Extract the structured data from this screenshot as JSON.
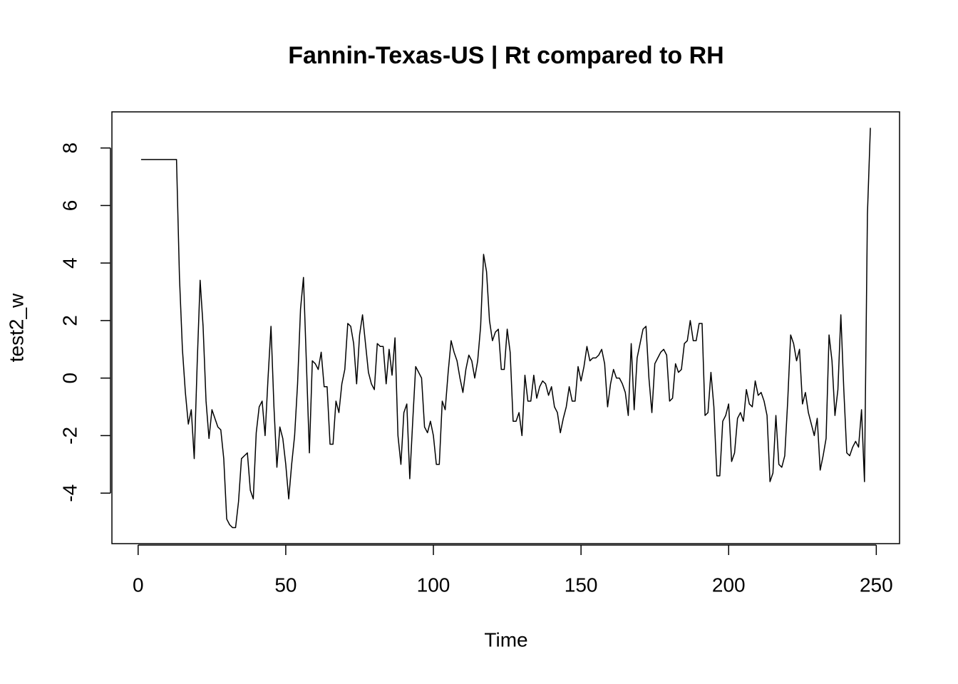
{
  "chart_data": {
    "type": "line",
    "title": "Fannin-Texas-US | Rt compared to RH",
    "x_label": "Time",
    "y_label": "test2_w",
    "color": "#000000",
    "x": [
      1,
      2,
      3,
      4,
      5,
      6,
      7,
      8,
      9,
      10,
      11,
      12,
      13,
      14,
      15,
      16,
      17,
      18,
      19,
      20,
      21,
      22,
      23,
      24,
      25,
      26,
      27,
      28,
      29,
      30,
      31,
      32,
      33,
      34,
      35,
      36,
      37,
      38,
      39,
      40,
      41,
      42,
      43,
      44,
      45,
      46,
      47,
      48,
      49,
      50,
      51,
      52,
      53,
      54,
      55,
      56,
      57,
      58,
      59,
      60,
      61,
      62,
      63,
      64,
      65,
      66,
      67,
      68,
      69,
      70,
      71,
      72,
      73,
      74,
      75,
      76,
      77,
      78,
      79,
      80,
      81,
      82,
      83,
      84,
      85,
      86,
      87,
      88,
      89,
      90,
      91,
      92,
      93,
      94,
      95,
      96,
      97,
      98,
      99,
      100,
      101,
      102,
      103,
      104,
      105,
      106,
      107,
      108,
      109,
      110,
      111,
      112,
      113,
      114,
      115,
      116,
      117,
      118,
      119,
      120,
      121,
      122,
      123,
      124,
      125,
      126,
      127,
      128,
      129,
      130,
      131,
      132,
      133,
      134,
      135,
      136,
      137,
      138,
      139,
      140,
      141,
      142,
      143,
      144,
      145,
      146,
      147,
      148,
      149,
      150,
      151,
      152,
      153,
      154,
      155,
      156,
      157,
      158,
      159,
      160,
      161,
      162,
      163,
      164,
      165,
      166,
      167,
      168,
      169,
      170,
      171,
      172,
      173,
      174,
      175,
      176,
      177,
      178,
      179,
      180,
      181,
      182,
      183,
      184,
      185,
      186,
      187,
      188,
      189,
      190,
      191,
      192,
      193,
      194,
      195,
      196,
      197,
      198,
      199,
      200,
      201,
      202,
      203,
      204,
      205,
      206,
      207,
      208,
      209,
      210,
      211,
      212,
      213,
      214,
      215,
      216,
      217,
      218,
      219,
      220,
      221,
      222,
      223,
      224,
      225,
      226,
      227,
      228,
      229,
      230,
      231,
      232,
      233,
      234,
      235,
      236,
      237,
      238,
      239,
      240,
      241,
      242,
      243,
      244,
      245,
      246,
      247,
      248
    ],
    "values": [
      7.6,
      7.6,
      7.6,
      7.6,
      7.6,
      7.6,
      7.6,
      7.6,
      7.6,
      7.6,
      7.6,
      7.6,
      7.6,
      3.5,
      1.0,
      -0.5,
      -1.6,
      -1.1,
      -2.8,
      0.5,
      3.4,
      1.8,
      -0.8,
      -2.1,
      -1.1,
      -1.4,
      -1.7,
      -1.8,
      -2.8,
      -4.9,
      -5.1,
      -5.2,
      -5.2,
      -4.3,
      -2.8,
      -2.7,
      -2.6,
      -3.9,
      -4.2,
      -1.9,
      -1.0,
      -0.8,
      -2.0,
      0.0,
      1.8,
      -1.0,
      -3.1,
      -1.7,
      -2.1,
      -3.0,
      -4.2,
      -3.0,
      -2.0,
      -0.2,
      2.4,
      3.5,
      0.5,
      -2.6,
      0.6,
      0.5,
      0.3,
      0.9,
      -0.3,
      -0.3,
      -2.3,
      -2.3,
      -0.8,
      -1.2,
      -0.2,
      0.3,
      1.9,
      1.8,
      1.2,
      -0.2,
      1.5,
      2.2,
      1.2,
      0.2,
      -0.2,
      -0.4,
      1.2,
      1.1,
      1.1,
      -0.2,
      1.0,
      0.1,
      1.4,
      -2.0,
      -3.0,
      -1.2,
      -0.9,
      -3.5,
      -1.5,
      0.4,
      0.2,
      0.0,
      -1.7,
      -1.9,
      -1.5,
      -2.0,
      -3.0,
      -3.0,
      -0.8,
      -1.1,
      0.2,
      1.3,
      0.9,
      0.6,
      0.0,
      -0.5,
      0.3,
      0.8,
      0.6,
      0.0,
      0.6,
      1.8,
      4.3,
      3.7,
      2.0,
      1.3,
      1.6,
      1.7,
      0.3,
      0.3,
      1.7,
      0.9,
      -1.5,
      -1.5,
      -1.2,
      -2.0,
      0.1,
      -0.8,
      -0.8,
      0.1,
      -0.7,
      -0.3,
      -0.1,
      -0.2,
      -0.6,
      -0.3,
      -1.0,
      -1.2,
      -1.9,
      -1.4,
      -1.0,
      -0.3,
      -0.8,
      -0.8,
      0.4,
      -0.1,
      0.4,
      1.1,
      0.6,
      0.7,
      0.7,
      0.8,
      1.0,
      0.5,
      -1.0,
      -0.2,
      0.3,
      0.0,
      0.0,
      -0.2,
      -0.5,
      -1.3,
      1.2,
      -1.1,
      0.7,
      1.2,
      1.7,
      1.8,
      0.0,
      -1.2,
      0.5,
      0.7,
      0.9,
      1.0,
      0.8,
      -0.8,
      -0.7,
      0.5,
      0.2,
      0.3,
      1.2,
      1.3,
      2.0,
      1.3,
      1.3,
      1.9,
      1.9,
      -1.3,
      -1.2,
      0.2,
      -1.0,
      -3.4,
      -3.4,
      -1.5,
      -1.3,
      -0.9,
      -2.9,
      -2.6,
      -1.4,
      -1.2,
      -1.5,
      -0.4,
      -0.9,
      -1.0,
      -0.1,
      -0.6,
      -0.5,
      -0.8,
      -1.3,
      -3.6,
      -3.3,
      -1.3,
      -3.0,
      -3.1,
      -2.7,
      -0.8,
      1.5,
      1.2,
      0.6,
      1.0,
      -0.9,
      -0.5,
      -1.2,
      -1.6,
      -2.0,
      -1.4,
      -3.2,
      -2.7,
      -2.1,
      1.5,
      0.6,
      -1.3,
      -0.4,
      2.2,
      -0.4,
      -2.6,
      -2.7,
      -2.4,
      -2.2,
      -2.4,
      -1.1,
      -3.6,
      5.7,
      8.7
    ],
    "xlim": [
      -8.88,
      257.88
    ],
    "ylim": [
      -5.756,
      9.256
    ],
    "xticks": [
      0,
      50,
      100,
      150,
      200,
      250
    ],
    "yticks": [
      -4,
      -2,
      0,
      2,
      4,
      6,
      8
    ]
  }
}
